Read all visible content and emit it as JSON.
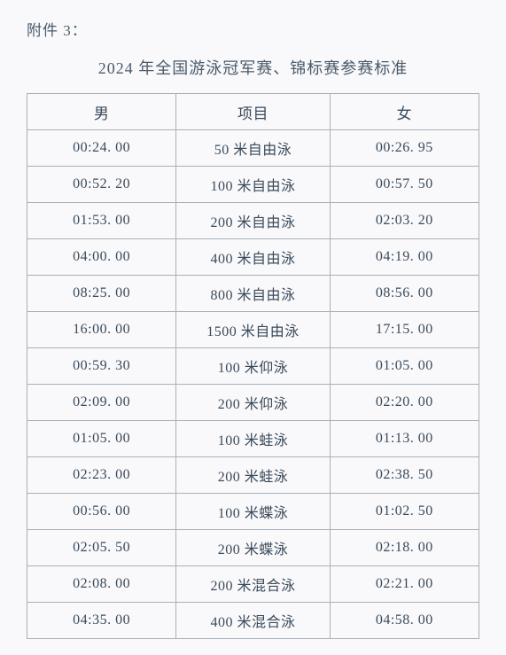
{
  "attachment_label": "附件 3：",
  "title": "2024 年全国游泳冠军赛、锦标赛参赛标准",
  "table": {
    "headers": {
      "men": "男",
      "event": "项目",
      "women": "女"
    },
    "rows": [
      {
        "men": "00:24. 00",
        "event": "50 米自由泳",
        "women": "00:26. 95"
      },
      {
        "men": "00:52. 20",
        "event": "100 米自由泳",
        "women": "00:57. 50"
      },
      {
        "men": "01:53. 00",
        "event": "200 米自由泳",
        "women": "02:03. 20"
      },
      {
        "men": "04:00. 00",
        "event": "400 米自由泳",
        "women": "04:19. 00"
      },
      {
        "men": "08:25. 00",
        "event": "800 米自由泳",
        "women": "08:56. 00"
      },
      {
        "men": "16:00. 00",
        "event": "1500 米自由泳",
        "women": "17:15. 00"
      },
      {
        "men": "00:59. 30",
        "event": "100 米仰泳",
        "women": "01:05. 00"
      },
      {
        "men": "02:09. 00",
        "event": "200 米仰泳",
        "women": "02:20. 00"
      },
      {
        "men": "01:05. 00",
        "event": "100 米蛙泳",
        "women": "01:13. 00"
      },
      {
        "men": "02:23. 00",
        "event": "200 米蛙泳",
        "women": "02:38. 50"
      },
      {
        "men": "00:56. 00",
        "event": "100 米蝶泳",
        "women": "01:02. 50"
      },
      {
        "men": "02:05. 50",
        "event": "200 米蝶泳",
        "women": "02:18. 00"
      },
      {
        "men": "02:08. 00",
        "event": "200 米混合泳",
        "women": "02:21. 00"
      },
      {
        "men": "04:35. 00",
        "event": "400 米混合泳",
        "women": "04:58. 00"
      }
    ]
  }
}
